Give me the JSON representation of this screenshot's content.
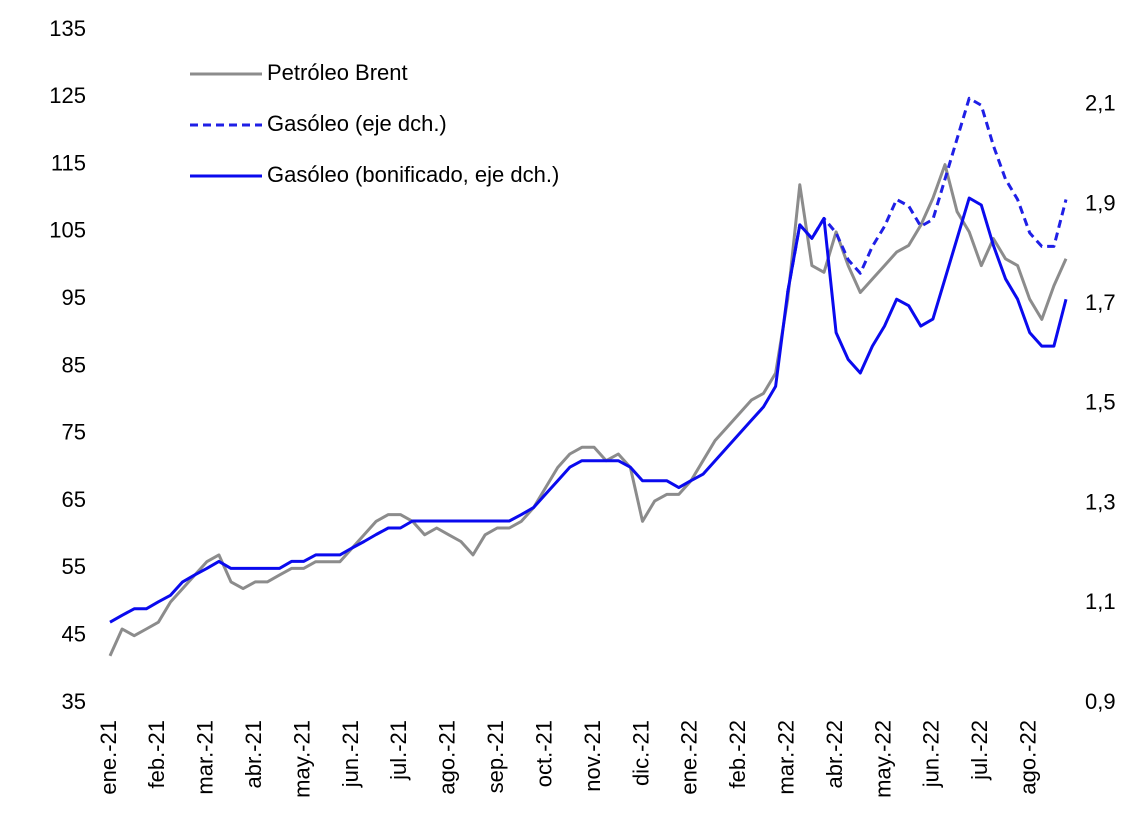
{
  "chart_data": {
    "type": "line",
    "categories": [
      "ene.-21",
      null,
      null,
      null,
      "feb.-21",
      null,
      null,
      null,
      "mar.-21",
      null,
      null,
      null,
      "abr.-21",
      null,
      null,
      null,
      "may.-21",
      null,
      null,
      null,
      "jun.-21",
      null,
      null,
      null,
      "jul.-21",
      null,
      null,
      null,
      "ago.-21",
      null,
      null,
      null,
      "sep.-21",
      null,
      null,
      null,
      "oct.-21",
      null,
      null,
      null,
      "nov.-21",
      null,
      null,
      null,
      "dic.-21",
      null,
      null,
      null,
      "ene.-22",
      null,
      null,
      null,
      "feb.-22",
      null,
      null,
      null,
      "mar.-22",
      null,
      null,
      null,
      "abr.-22",
      null,
      null,
      null,
      "may.-22",
      null,
      null,
      null,
      "jun.-22",
      null,
      null,
      null,
      "jul.-22",
      null,
      null,
      null,
      "ago.-22",
      null,
      null,
      null
    ],
    "series": [
      {
        "name": "Petróleo Brent",
        "color": "#8c8c8c",
        "dash": false,
        "values": [
          42,
          46,
          45,
          46,
          47,
          50,
          52,
          54,
          56,
          57,
          53,
          52,
          53,
          53,
          54,
          55,
          55,
          56,
          56,
          56,
          58,
          60,
          62,
          63,
          63,
          62,
          60,
          61,
          60,
          59,
          57,
          60,
          61,
          61,
          62,
          64,
          67,
          70,
          72,
          73,
          73,
          71,
          72,
          70,
          62,
          65,
          66,
          66,
          68,
          71,
          74,
          76,
          78,
          80,
          81,
          84,
          95,
          112,
          100,
          99,
          105,
          100,
          96,
          98,
          100,
          102,
          103,
          106,
          110,
          115,
          108,
          105,
          100,
          104,
          101,
          100,
          95,
          92,
          97,
          101
        ]
      },
      {
        "name": "Gasóleo (eje dch.)",
        "color": "#1f1fe6",
        "dash": true,
        "axis": "y2",
        "values": [
          null,
          null,
          null,
          null,
          null,
          null,
          null,
          null,
          null,
          null,
          null,
          null,
          null,
          null,
          null,
          null,
          null,
          null,
          null,
          null,
          null,
          null,
          null,
          null,
          null,
          null,
          null,
          null,
          null,
          null,
          null,
          null,
          null,
          null,
          null,
          null,
          null,
          null,
          null,
          null,
          null,
          null,
          null,
          null,
          null,
          null,
          null,
          null,
          null,
          null,
          null,
          null,
          null,
          null,
          null,
          null,
          1.724,
          1.859,
          1.832,
          1.872,
          1.843,
          1.789,
          1.762,
          1.816,
          1.856,
          1.91,
          1.897,
          1.856,
          1.87,
          1.951,
          2.032,
          2.113,
          2.099,
          2.018,
          1.951,
          1.91,
          1.843,
          1.816,
          1.816,
          1.91
        ]
      },
      {
        "name": "Gasóleo (bonificado, eje dch.)",
        "color": "#0a0aee",
        "dash": false,
        "axis": "y2",
        "values": [
          1.062,
          1.076,
          1.089,
          1.089,
          1.103,
          1.116,
          1.143,
          1.157,
          1.17,
          1.184,
          1.17,
          1.17,
          1.17,
          1.17,
          1.17,
          1.184,
          1.184,
          1.197,
          1.197,
          1.197,
          1.211,
          1.224,
          1.238,
          1.251,
          1.251,
          1.265,
          1.265,
          1.265,
          1.265,
          1.265,
          1.265,
          1.265,
          1.265,
          1.265,
          1.278,
          1.292,
          1.319,
          1.346,
          1.373,
          1.386,
          1.386,
          1.386,
          1.386,
          1.373,
          1.346,
          1.346,
          1.346,
          1.332,
          1.346,
          1.359,
          1.386,
          1.413,
          1.44,
          1.467,
          1.494,
          1.535,
          1.724,
          1.859,
          1.832,
          1.872,
          1.643,
          1.589,
          1.562,
          1.616,
          1.656,
          1.71,
          1.697,
          1.656,
          1.67,
          1.751,
          1.832,
          1.913,
          1.899,
          1.818,
          1.751,
          1.71,
          1.643,
          1.616,
          1.616,
          1.71
        ]
      }
    ],
    "ylim": [
      35,
      135
    ],
    "yticks": [
      35,
      45,
      55,
      65,
      75,
      85,
      95,
      105,
      115,
      125,
      135
    ],
    "y2lim": [
      0.9,
      2.25
    ],
    "y2ticks": [
      {
        "value": 0.9,
        "label": "0,9"
      },
      {
        "value": 1.1,
        "label": "1,1"
      },
      {
        "value": 1.3,
        "label": "1,3"
      },
      {
        "value": 1.5,
        "label": "1,5"
      },
      {
        "value": 1.7,
        "label": "1,7"
      },
      {
        "value": 1.9,
        "label": "1,9"
      },
      {
        "value": 2.1,
        "label": "2,1"
      }
    ],
    "grid": false,
    "legend": "upper left"
  }
}
